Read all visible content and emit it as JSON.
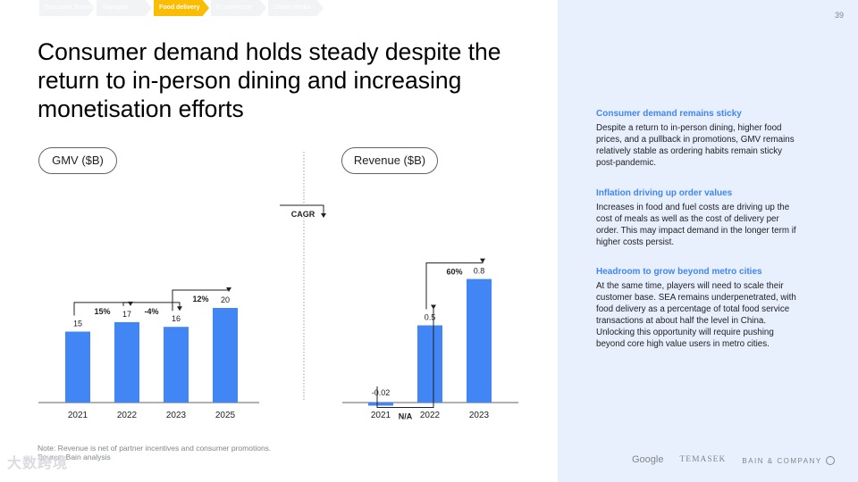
{
  "tabs": [
    {
      "label": "Executive Summary",
      "active": false
    },
    {
      "label": "Transport",
      "active": false
    },
    {
      "label": "Food delivery",
      "active": true
    },
    {
      "label": "E-commerce",
      "active": false
    },
    {
      "label": "Online Media",
      "active": false
    }
  ],
  "page_number": "39",
  "title": "Consumer demand holds steady despite the return to in-person dining and increasing monetisation efforts",
  "cagr_label": "CAGR",
  "gmv_chart": {
    "pill_label": "GMV ($B)",
    "categories": [
      "2021",
      "2022",
      "2023",
      "2025"
    ],
    "values": [
      15,
      17,
      16,
      20
    ],
    "value_labels": [
      "15",
      "17",
      "16",
      "20"
    ],
    "growth_labels": [
      "15%",
      "-4%",
      "12%"
    ],
    "bar_color": "#4285f4"
  },
  "revenue_chart": {
    "pill_label": "Revenue ($B)",
    "categories": [
      "2021",
      "2022",
      "2023"
    ],
    "values": [
      -0.02,
      0.5,
      0.8
    ],
    "value_labels": [
      "-0.02",
      "0.5",
      "0.8"
    ],
    "growth_labels": [
      "N/A",
      "60%"
    ],
    "bar_color": "#4285f4"
  },
  "footnote": {
    "note": "Note: Revenue is net of partner incentives and consumer promotions.",
    "source": "Source: Bain analysis"
  },
  "watermark": "大数跨境",
  "insights": [
    {
      "heading": "Consumer demand remains sticky",
      "body": "Despite a return to in-person dining, higher food prices, and a pullback in promotions, GMV remains relatively stable as ordering habits remain sticky post-pandemic."
    },
    {
      "heading": "Inflation driving up order values",
      "body": "Increases in food and fuel costs are driving up the cost of meals as well as the cost of delivery per order. This may impact demand in the longer term if higher costs persist."
    },
    {
      "heading": "Headroom to grow beyond metro cities",
      "body": "At the same time, players will need to scale their customer base. SEA remains underpenetrated, with food delivery as a percentage of total food service transactions at about half the level in China. Unlocking this opportunity will require pushing beyond core high value users in metro cities."
    }
  ],
  "logos": {
    "google": "Google",
    "temasek": "TEMASEK",
    "bain": "BAIN & COMPANY"
  },
  "chart_data": [
    {
      "type": "bar",
      "title": "GMV ($B)",
      "categories": [
        "2021",
        "2022",
        "2023",
        "2025"
      ],
      "values": [
        15,
        17,
        16,
        20
      ],
      "growth": [
        "15%",
        "-4%",
        "12%"
      ]
    },
    {
      "type": "bar",
      "title": "Revenue ($B)",
      "categories": [
        "2021",
        "2022",
        "2023"
      ],
      "values": [
        -0.02,
        0.5,
        0.8
      ],
      "growth": [
        "N/A",
        "60%"
      ]
    }
  ]
}
